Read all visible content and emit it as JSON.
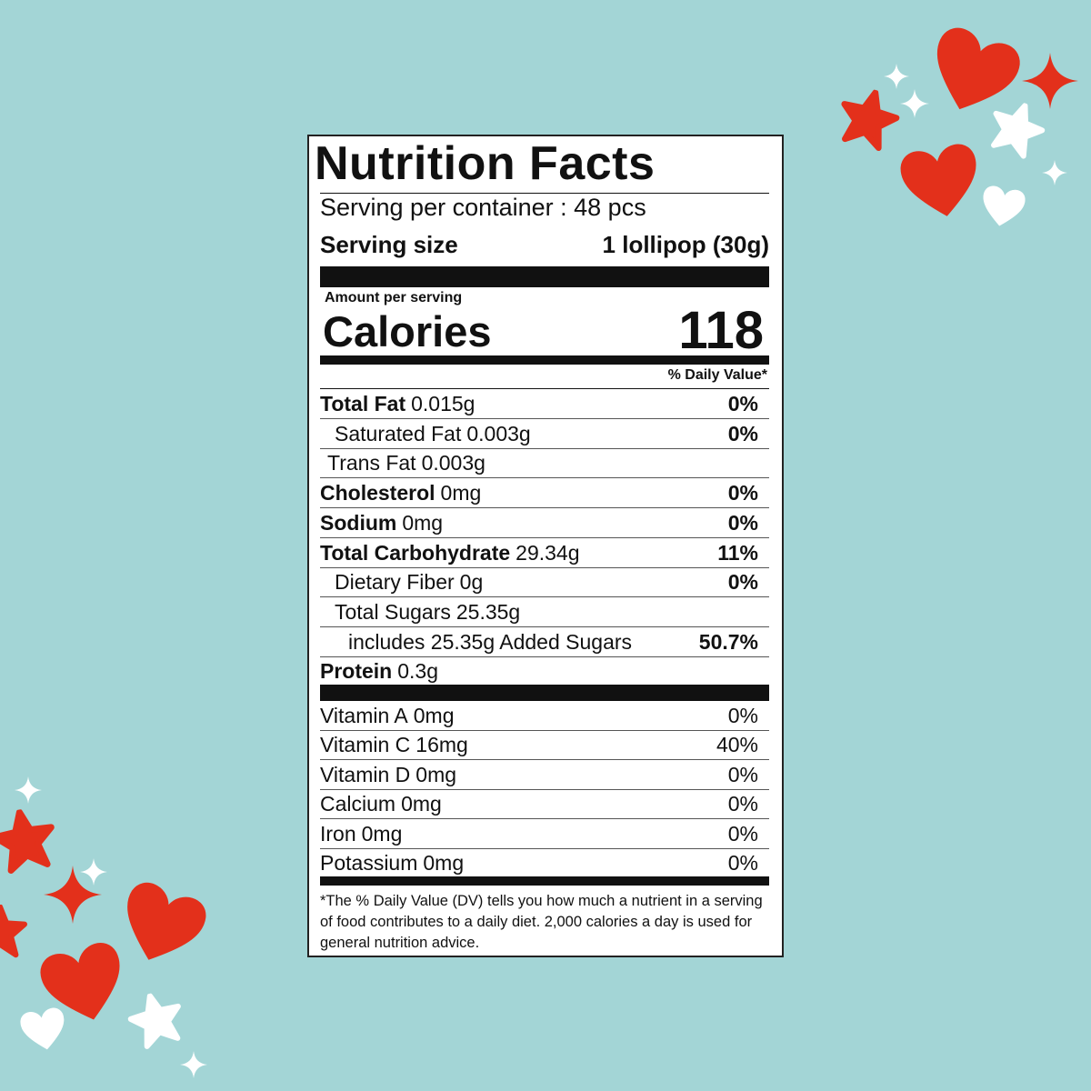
{
  "label": {
    "title": "Nutrition Facts",
    "servings_per_container": "Serving per container : 48 pcs",
    "serving_size_label": "Serving size",
    "serving_size_value": "1 lollipop (30g)",
    "amount_per_serving": "Amount per serving",
    "calories_label": "Calories",
    "calories_value": "118",
    "daily_value_header": "% Daily Value*",
    "nutrients": [
      {
        "name": "Total Fat",
        "amount": "0.015g",
        "dv": "0%"
      },
      {
        "name": "Saturated Fat",
        "amount": "0.003g",
        "dv": "0%"
      },
      {
        "name": "Trans Fat",
        "amount": "0.003g"
      },
      {
        "name": "Cholesterol",
        "amount": "0mg",
        "dv": "0%"
      },
      {
        "name": "Sodium",
        "amount": "0mg",
        "dv": "0%"
      },
      {
        "name": "Total Carbohydrate",
        "amount": "29.34g",
        "dv": "11%"
      },
      {
        "name": "Dietary Fiber",
        "amount": "0g",
        "dv": "0%"
      },
      {
        "name": "Total Sugars",
        "amount": "25.35g"
      },
      {
        "name": "includes 25.35g Added Sugars",
        "dv": "50.7%"
      },
      {
        "name": "Protein",
        "amount": "0.3g"
      }
    ],
    "vitamins": [
      {
        "name": "Vitamin A",
        "amount": "0mg",
        "dv": "0%"
      },
      {
        "name": "Vitamin C",
        "amount": "16mg",
        "dv": "40%"
      },
      {
        "name": "Vitamin D",
        "amount": "0mg",
        "dv": "0%"
      },
      {
        "name": "Calcium",
        "amount": "0mg",
        "dv": "0%"
      },
      {
        "name": "Iron",
        "amount": "0mg",
        "dv": "0%"
      },
      {
        "name": "Potassium",
        "amount": "0mg",
        "dv": "0%"
      }
    ],
    "footnote": "*The % Daily Value (DV) tells you how much a nutrient in a serving of food contributes to a daily diet. 2,000 calories a day is used for general nutrition advice."
  }
}
